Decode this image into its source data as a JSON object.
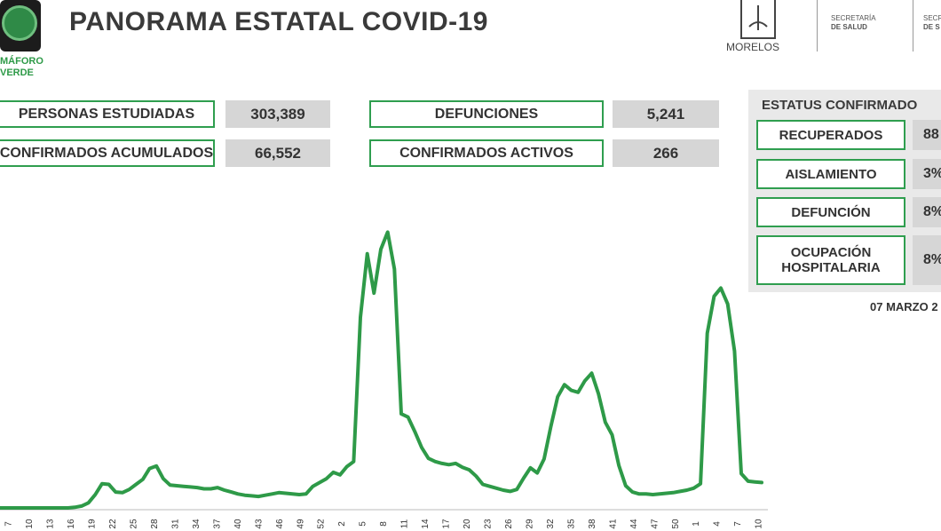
{
  "header": {
    "title": "PANORAMA ESTATAL COVID-19",
    "semaforo_line1": "MÁFORO",
    "semaforo_line2": "VERDE",
    "state_label": "MORELOS",
    "secretaria_line1": "SECRETARÍA",
    "secretaria_line2": "DE SALUD",
    "secretaria2_line1": "SECRETA",
    "secretaria2_line2": "DE S"
  },
  "stats": {
    "personas_label": "PERSONAS ESTUDIADAS",
    "personas_value": "303,389",
    "confirmados_label": "CONFIRMADOS ACUMULADOS",
    "confirmados_value": "66,552",
    "defunciones_label": "DEFUNCIONES",
    "defunciones_value": "5,241",
    "activos_label": "CONFIRMADOS ACTIVOS",
    "activos_value": "266"
  },
  "status": {
    "title": "ESTATUS CONFIRMADO",
    "items": [
      {
        "label": "RECUPERADOS",
        "value": "88"
      },
      {
        "label": "AISLAMIENTO",
        "value": "3%"
      },
      {
        "label": "DEFUNCIÓN",
        "value": "8%"
      },
      {
        "label_line1": "OCUPACIÓN",
        "label_line2": "HOSPITALARIA",
        "value": "8%"
      }
    ],
    "date": "07 MARZO 2"
  },
  "colors": {
    "accent": "#2f9e4f",
    "line": "#2e9a48",
    "value_bg": "#d6d6d6",
    "panel_bg": "#e9e9e9"
  },
  "chart_data": {
    "type": "line",
    "title": "",
    "xlabel": "",
    "ylabel": "",
    "tick_labels": [
      "7",
      "10",
      "13",
      "16",
      "19",
      "22",
      "25",
      "28",
      "31",
      "34",
      "37",
      "40",
      "43",
      "46",
      "49",
      "52",
      "2",
      "5",
      "8",
      "11",
      "14",
      "17",
      "20",
      "23",
      "26",
      "29",
      "32",
      "35",
      "38",
      "41",
      "44",
      "47",
      "50",
      "1",
      "4",
      "7",
      "10"
    ],
    "series": [
      {
        "values": [
          0,
          0,
          0,
          0,
          0,
          0,
          0,
          0,
          0,
          0,
          0,
          1,
          3,
          8,
          21,
          38,
          37,
          25,
          24,
          29,
          37,
          45,
          62,
          66,
          46,
          36,
          35,
          34,
          33,
          32,
          30,
          30,
          32,
          28,
          25,
          22,
          20,
          19,
          18,
          20,
          22,
          24,
          23,
          22,
          21,
          22,
          34,
          40,
          46,
          56,
          52,
          65,
          73,
          300,
          400,
          338,
          407,
          434,
          376,
          148,
          143,
          120,
          95,
          78,
          73,
          70,
          68,
          70,
          64,
          60,
          50,
          37,
          34,
          31,
          28,
          26,
          29,
          47,
          63,
          55,
          77,
          128,
          175,
          194,
          185,
          182,
          200,
          212,
          180,
          135,
          115,
          67,
          35,
          25,
          22,
          22,
          21,
          22,
          23,
          24,
          26,
          28,
          31,
          38,
          275,
          333,
          346,
          321,
          247,
          54,
          42,
          41,
          40
        ]
      }
    ],
    "ylim": [
      0,
      450
    ],
    "grid": false,
    "legend": "none"
  }
}
